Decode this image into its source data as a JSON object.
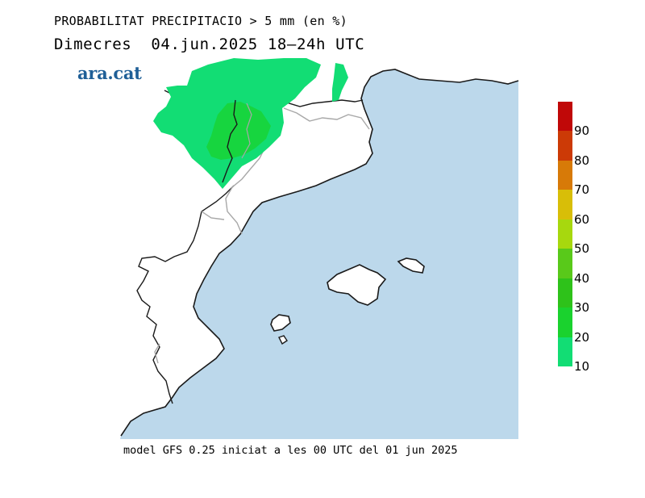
{
  "header": {
    "title": "PROBABILITAT PRECIPITACIO > 5 mm (en %)",
    "day": "Dimecres",
    "date_range": "04.jun.2025 18–24h UTC"
  },
  "logo": {
    "text": "ara.cat",
    "color": "#1f5f97"
  },
  "footer": {
    "model_info": "model GFS 0.25 iniciat a les 00 UTC del 01 jun 2025"
  },
  "map": {
    "sea_color": "#bcd8eb",
    "land_color": "#ffffff",
    "coast_color": "#1a1a1a",
    "border_color": "#a8a8a8",
    "precip_region_band": "10-20",
    "precip_core_band": "20-30"
  },
  "legend": {
    "labels": [
      "10",
      "20",
      "30",
      "40",
      "50",
      "60",
      "70",
      "80",
      "90"
    ],
    "colors": [
      "#12dd74",
      "#1ad22e",
      "#2ec21a",
      "#59c91a",
      "#a7d80e",
      "#d8be08",
      "#d77a08",
      "#cc3a06",
      "#c00808"
    ]
  }
}
